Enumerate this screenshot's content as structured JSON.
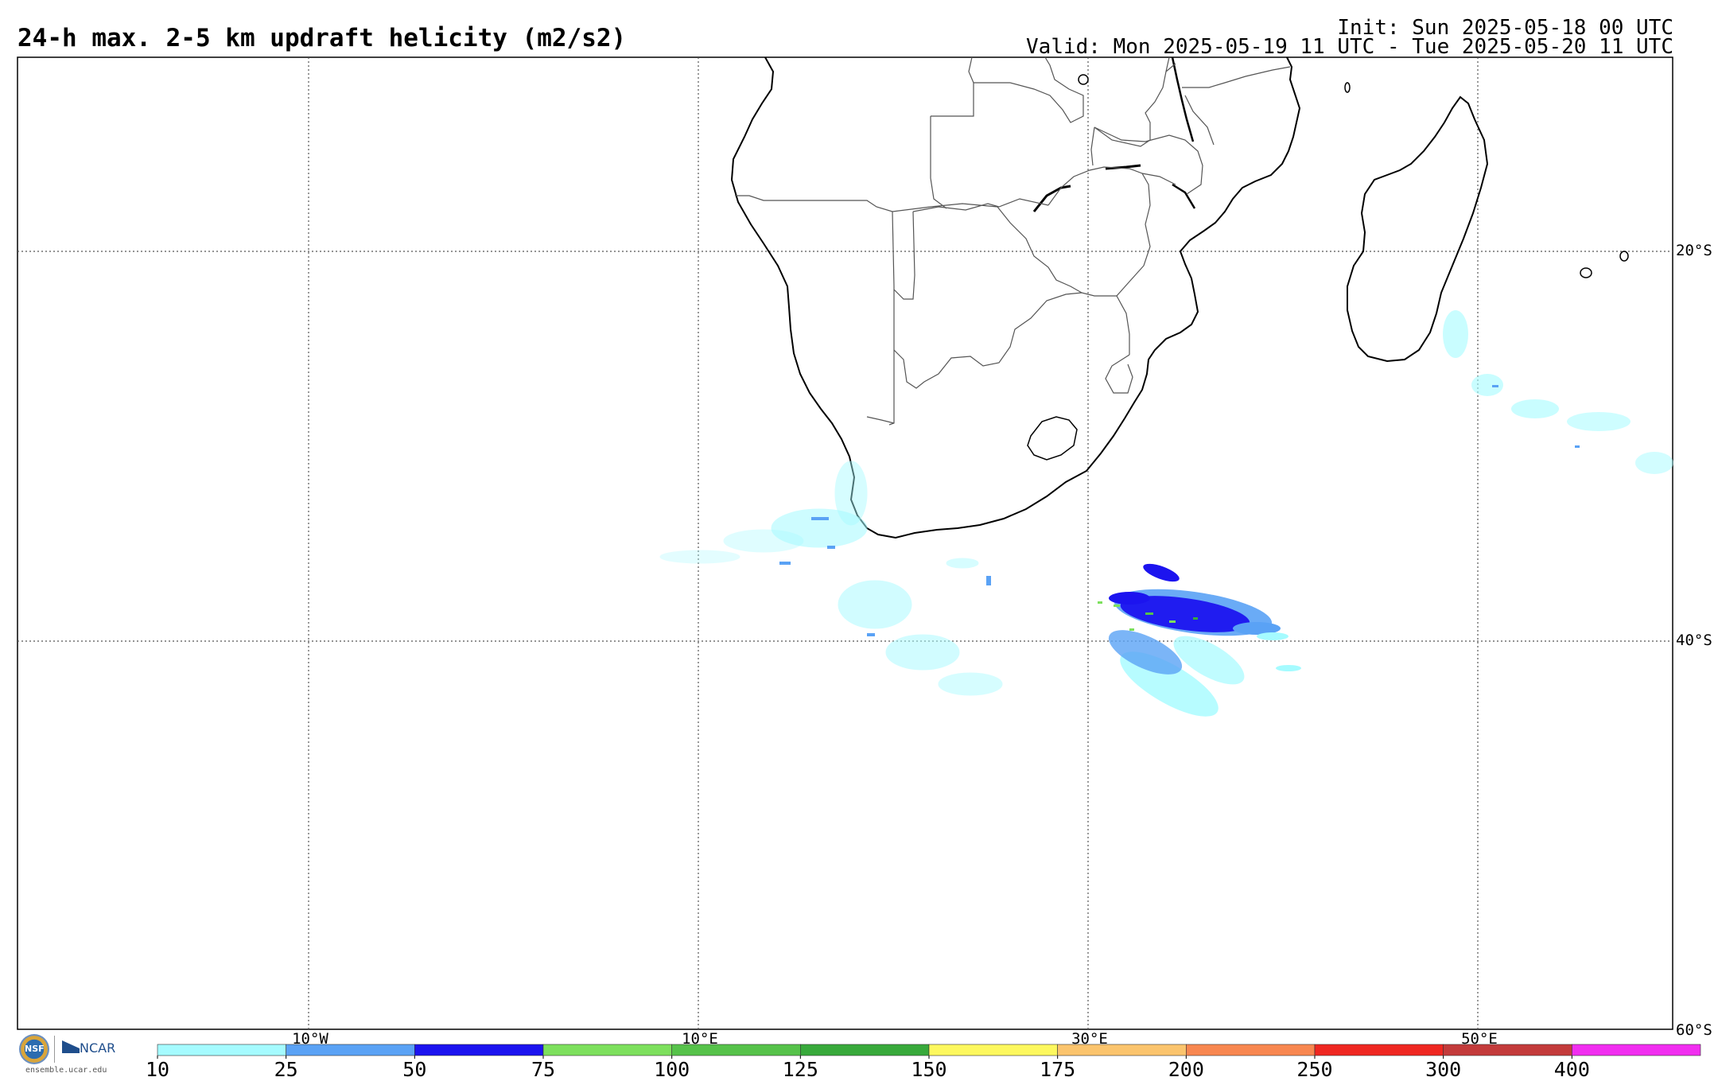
{
  "header": {
    "title": "24-h max. 2-5 km updraft helicity (m2/s2)",
    "init": "Init: Sun 2025-05-18 00 UTC",
    "valid": "Valid: Mon 2025-05-19 11 UTC - Tue 2025-05-20 11 UTC"
  },
  "map": {
    "region": "Southern Africa and South Atlantic / Indian Ocean",
    "grid_lines": "dotted",
    "lat_labels": [
      "20°S",
      "40°S",
      "60°S"
    ],
    "lon_labels": [
      "10°W",
      "10°E",
      "30°E",
      "50°E"
    ],
    "features": [
      {
        "name": "South Africa coast helicity swath",
        "max_value_class": "50-75"
      },
      {
        "name": "Southern Ocean helicity cluster near 30°E",
        "max_value_class": "100-125"
      },
      {
        "name": "East of Madagascar helicity swath",
        "max_value_class": "25-50"
      }
    ]
  },
  "colorbar": {
    "ticks": [
      "10",
      "25",
      "50",
      "75",
      "100",
      "125",
      "150",
      "175",
      "200",
      "250",
      "300",
      "400"
    ],
    "colors": [
      "#a5fbff",
      "#5aa2f5",
      "#1c14ef",
      "#7de05d",
      "#56c24a",
      "#38a93b",
      "#fdf85e",
      "#fbc46d",
      "#f88750",
      "#ef2721",
      "#c33b3b",
      "#f12ef0"
    ]
  },
  "logos": {
    "nsf": "NSF",
    "ncar": "NCAR",
    "site": "ensemble.ucar.edu"
  }
}
